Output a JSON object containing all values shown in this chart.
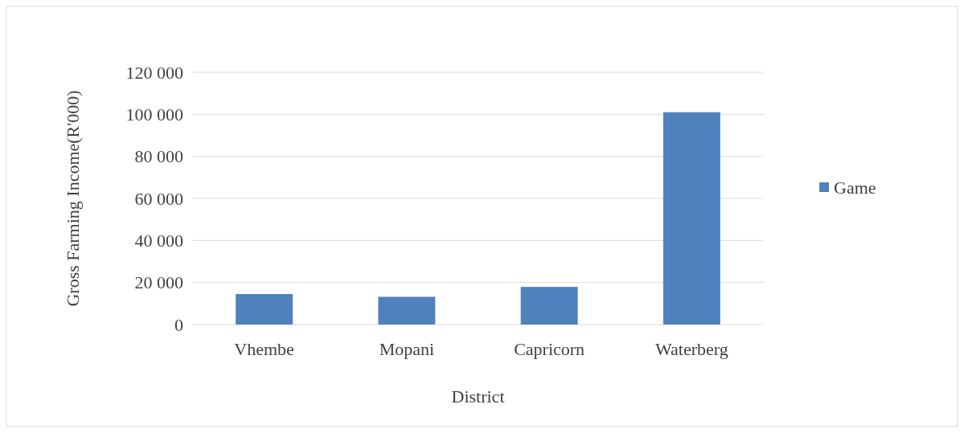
{
  "chart_data": {
    "type": "bar",
    "xlabel": "District",
    "ylabel": "Gross Farming Income(R'000)",
    "categories": [
      "Vhembe",
      "Mopani",
      "Capricorn",
      "Waterberg"
    ],
    "series": [
      {
        "name": "Game",
        "color": "#4f81bd",
        "values": [
          14500,
          13200,
          17900,
          101000
        ]
      }
    ],
    "ylim": [
      0,
      120000
    ],
    "yticks": [
      {
        "value": 0,
        "label": "0"
      },
      {
        "value": 20000,
        "label": "20 000"
      },
      {
        "value": 40000,
        "label": "40 000"
      },
      {
        "value": 60000,
        "label": "60 000"
      },
      {
        "value": 80000,
        "label": "80 000"
      },
      {
        "value": 100000,
        "label": "100 000"
      },
      {
        "value": 120000,
        "label": "120 000"
      }
    ],
    "grid": "y",
    "legend": "right"
  }
}
